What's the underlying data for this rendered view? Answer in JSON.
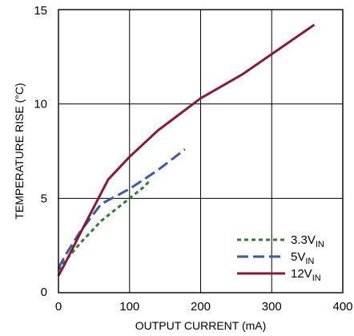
{
  "chart_data": {
    "type": "line",
    "xlabel": "OUTPUT CURRENT (mA)",
    "ylabel": "TEMPERATURE RISE (°C)",
    "xlim": [
      0,
      400
    ],
    "ylim": [
      0,
      15
    ],
    "xticks": [
      "0",
      "100",
      "200",
      "300",
      "400"
    ],
    "yticks": [
      "0",
      "5",
      "10",
      "15"
    ],
    "grid": true,
    "legend_position": "bottom-right",
    "series": [
      {
        "name": "3.3V",
        "name_sub": "IN",
        "style": "dotted",
        "color": "#2e7d3a",
        "x": [
          0,
          10,
          30,
          60,
          90,
          120,
          130
        ],
        "y": [
          1.2,
          1.7,
          2.6,
          3.8,
          4.7,
          5.6,
          6.0
        ]
      },
      {
        "name": "5V",
        "name_sub": "IN",
        "style": "dashed",
        "color": "#3c5aa6",
        "x": [
          0,
          10,
          30,
          60,
          100,
          140,
          178
        ],
        "y": [
          1.3,
          2.0,
          3.2,
          4.7,
          5.5,
          6.5,
          7.6
        ]
      },
      {
        "name": "12V",
        "name_sub": "IN",
        "style": "solid",
        "color": "#8b1a3a",
        "x": [
          0,
          10,
          30,
          70,
          100,
          140,
          200,
          260,
          310,
          360
        ],
        "y": [
          0.9,
          1.6,
          3.1,
          6.0,
          7.2,
          8.6,
          10.3,
          11.6,
          12.9,
          14.2
        ]
      }
    ]
  }
}
